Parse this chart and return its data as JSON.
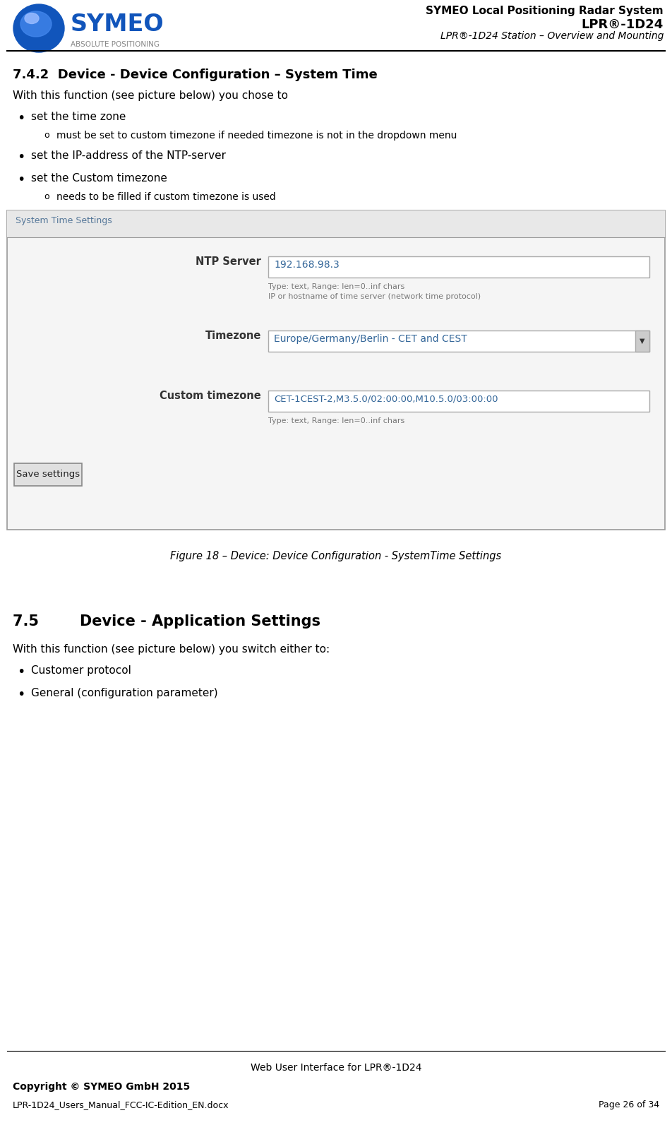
{
  "header_title_line1": "SYMEO Local Positioning Radar System",
  "header_title_line2": "LPR®-1D24",
  "header_title_line3": "LPR®-1D24 Station – Overview and Mounting",
  "section_742_title": "7.4.2  Device - Device Configuration – System Time",
  "section_742_intro": "With this function (see picture below) you chose to",
  "bullet1": "set the time zone",
  "sub_bullet1": "must be set to custom timezone if needed timezone is not in the dropdown menu",
  "bullet2": "set the IP-address of the NTP-server",
  "bullet3": "set the Custom timezone",
  "sub_bullet2": "needs to be filled if custom timezone is used",
  "figure_box_title": "System Time Settings",
  "ntp_label": "NTP Server",
  "ntp_value": "192.168.98.3",
  "ntp_hint1": "Type: text, Range: len=0..inf chars",
  "ntp_hint2": "IP or hostname of time server (network time protocol)",
  "tz_label": "Timezone",
  "tz_value": "Europe/Germany/Berlin - CET and CEST",
  "ctz_label": "Custom timezone",
  "ctz_value": "CET-1CEST-2,M3.5.0/02:00:00,M10.5.0/03:00:00",
  "ctz_hint": "Type: text, Range: len=0..inf chars",
  "save_btn": "Save settings",
  "figure_caption": "Figure 18 – Device: Device Configuration - SystemTime Settings",
  "section_75_title": "7.5        Device - Application Settings",
  "section_75_intro": "With this function (see picture below) you switch either to:",
  "bullet4": "Customer protocol",
  "bullet5": "General (configuration parameter)",
  "footer_center": "Web User Interface for LPR®-1D24",
  "footer_left1": "Copyright © SYMEO GmbH 2015",
  "footer_left2": "LPR-1D24_Users_Manual_FCC-IC-Edition_EN.docx",
  "footer_right": "Page 26 of 34",
  "bg_color": "#ffffff",
  "text_color": "#000000",
  "box_title_bg": "#e8e8e8",
  "box_bg_color": "#f5f5f5",
  "input_bg": "#ffffff",
  "input_border": "#aaaaaa",
  "input_text_color": "#336699",
  "label_color_bold": "#333333",
  "hint_color": "#777777",
  "logo_blue": "#1155bb",
  "logo_blue2": "#4488ee",
  "logo_shine": "#99bbff",
  "sub_text_color": "#888888",
  "box_border_color": "#999999",
  "dd_arrow_bg": "#cccccc"
}
